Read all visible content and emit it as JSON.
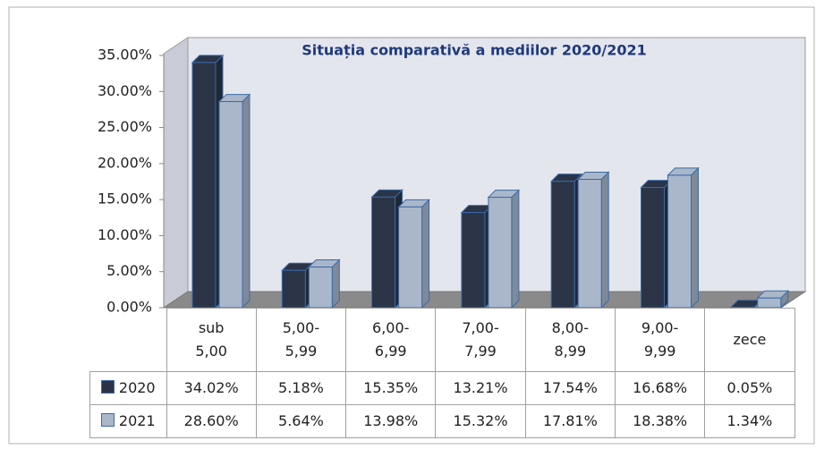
{
  "chart_data": {
    "type": "bar3d",
    "title": "Situația comparativă a mediilor 2020/2021",
    "categories": [
      "sub\n5,00",
      "5,00-\n5,99",
      "6,00-\n6,99",
      "7,00-\n7,99",
      "8,00-\n8,99",
      "9,00-\n9,99",
      "zece"
    ],
    "series": [
      {
        "name": "2020",
        "color": "#2b3447",
        "values": [
          34.02,
          5.18,
          15.35,
          13.21,
          17.54,
          16.68,
          0.05
        ],
        "value_labels": [
          "34.02%",
          "5.18%",
          "15.35%",
          "13.21%",
          "17.54%",
          "16.68%",
          "0.05%"
        ]
      },
      {
        "name": "2021",
        "color": "#aab7ca",
        "values": [
          28.6,
          5.64,
          13.98,
          15.32,
          17.81,
          18.38,
          1.34
        ],
        "value_labels": [
          "28.60%",
          "5.64%",
          "13.98%",
          "15.32%",
          "17.81%",
          "18.38%",
          "1.34%"
        ]
      }
    ],
    "ylim": [
      0,
      35
    ],
    "yticks": [
      {
        "value": 0,
        "label": "0.00%"
      },
      {
        "value": 5,
        "label": "5.00%"
      },
      {
        "value": 10,
        "label": "10.00%"
      },
      {
        "value": 15,
        "label": "15.00%"
      },
      {
        "value": 20,
        "label": "20.00%"
      },
      {
        "value": 25,
        "label": "25.00%"
      },
      {
        "value": 30,
        "label": "30.00%"
      },
      {
        "value": 35,
        "label": "35.00%"
      }
    ],
    "legend": "table"
  }
}
